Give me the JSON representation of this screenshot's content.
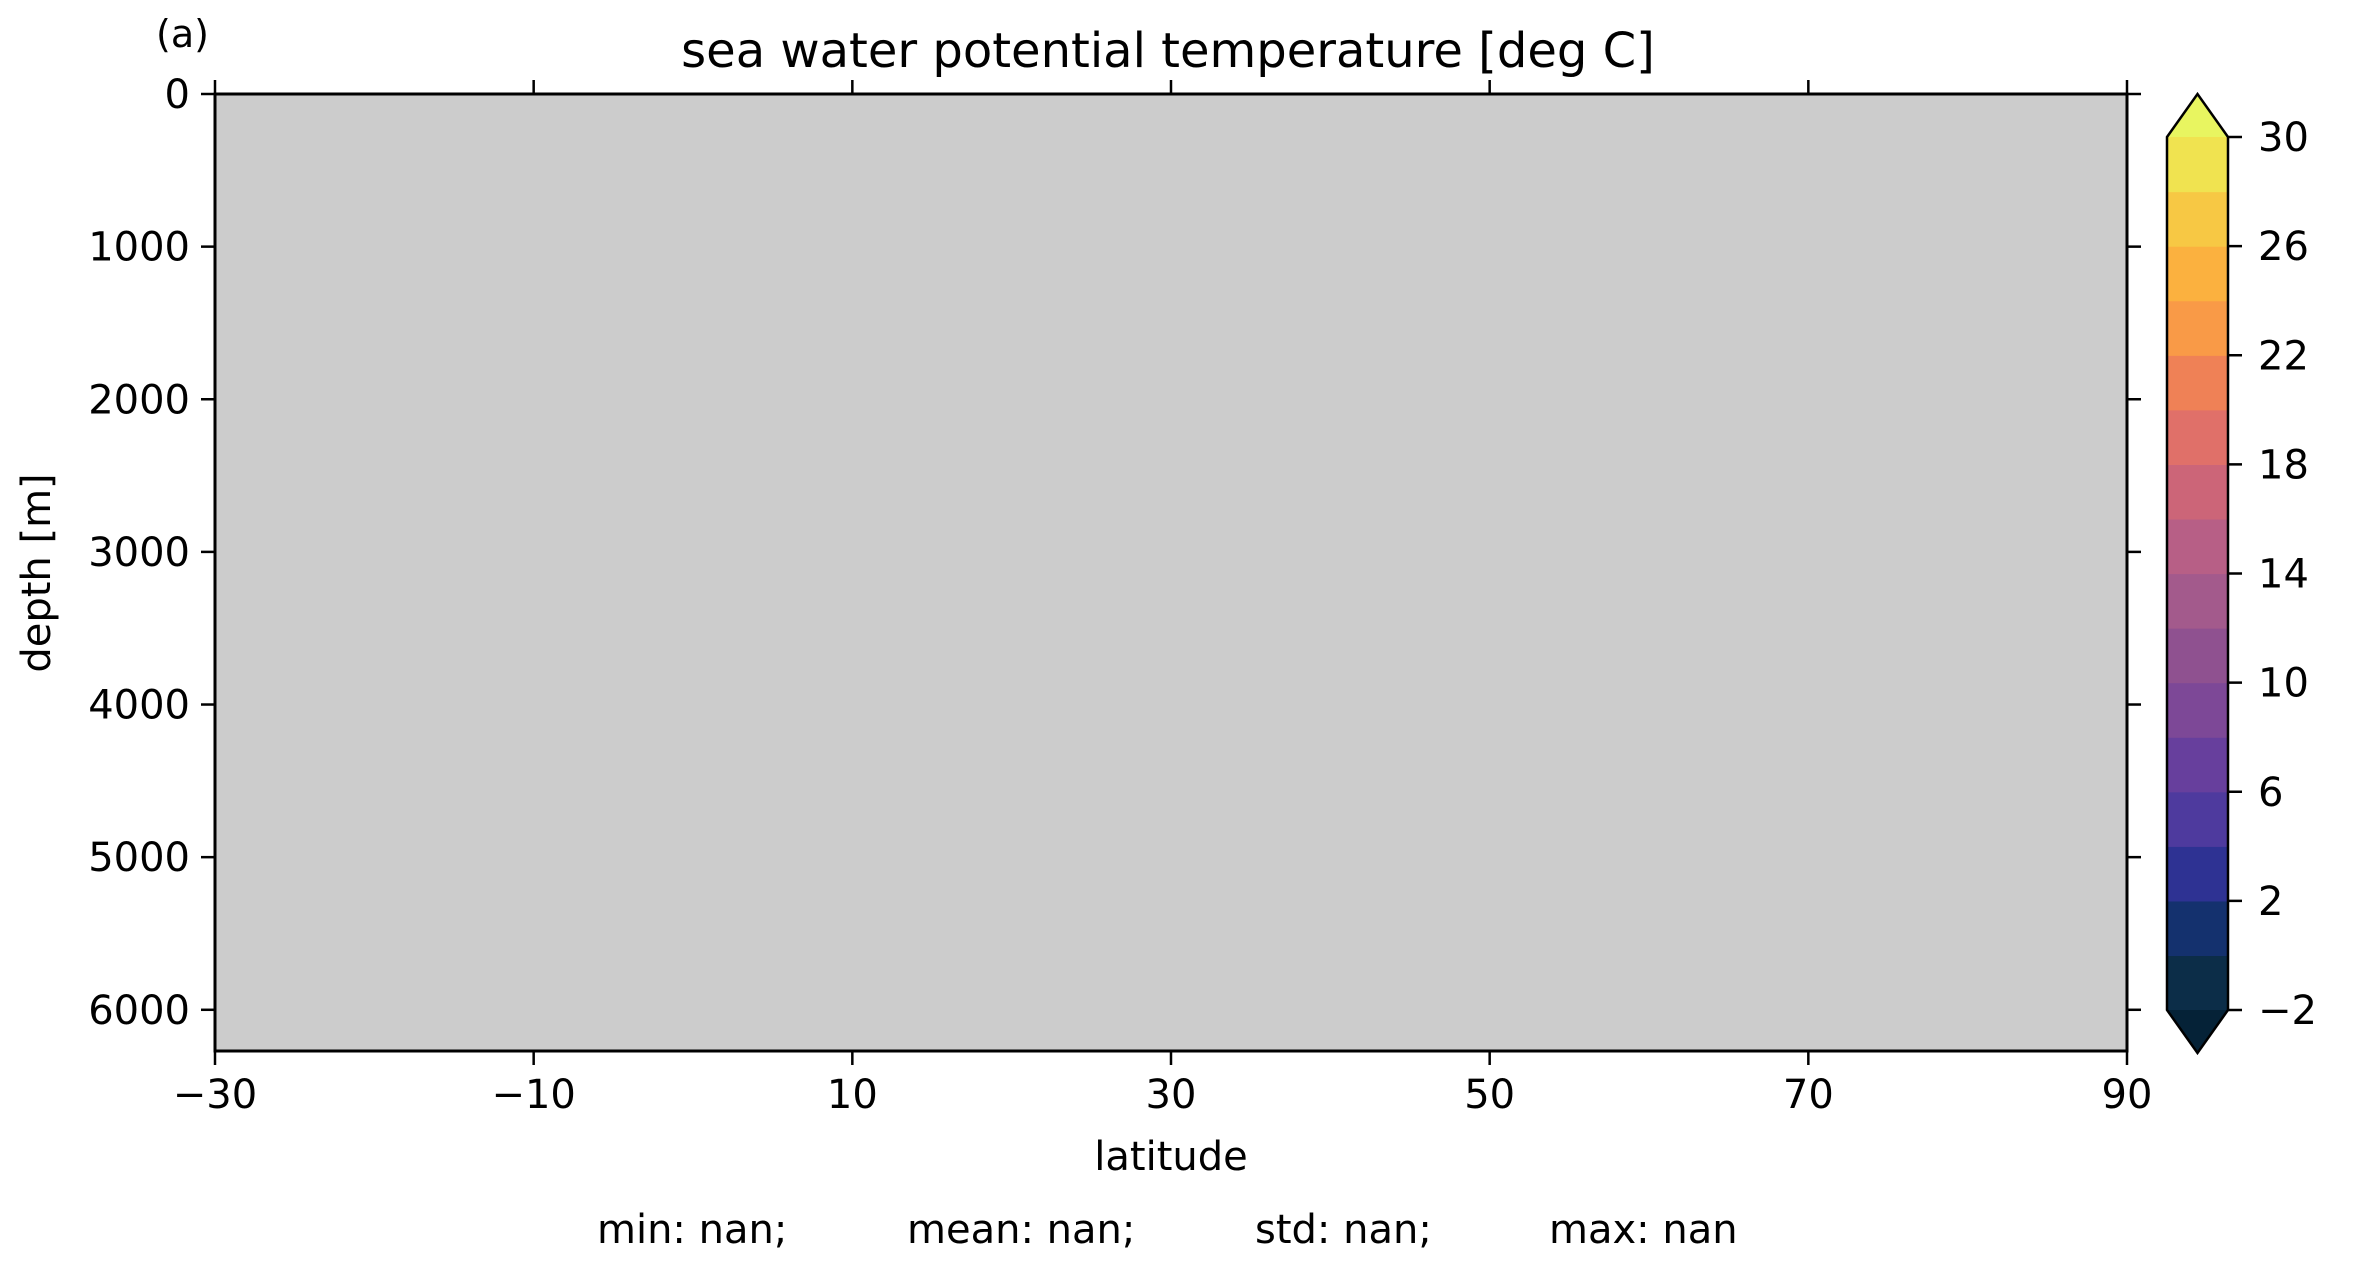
{
  "chart_data": {
    "type": "heatmap",
    "panel_label": "(a)",
    "title": "sea water potential temperature [deg C]",
    "xlabel": "latitude",
    "ylabel": "depth [m]",
    "xlim": [
      -30,
      90
    ],
    "ylim": [
      6270,
      0
    ],
    "y_inverted": true,
    "x_ticks": [
      -30,
      -10,
      10,
      30,
      50,
      70,
      90
    ],
    "x_tick_labels": [
      "−30",
      "−10",
      "10",
      "30",
      "50",
      "70",
      "90"
    ],
    "y_ticks": [
      0,
      1000,
      2000,
      3000,
      4000,
      5000,
      6000
    ],
    "y_tick_labels": [
      "0",
      "1000",
      "2000",
      "3000",
      "4000",
      "5000",
      "6000"
    ],
    "field_values": "all NaN (no data)",
    "missing_color": "#cccccc",
    "colorbar": {
      "levels": [
        -2,
        0,
        2,
        4,
        6,
        8,
        10,
        12,
        14,
        16,
        18,
        20,
        22,
        24,
        26,
        28,
        30
      ],
      "extend": "both",
      "tick_values": [
        -2,
        2,
        6,
        10,
        14,
        18,
        22,
        26,
        30
      ],
      "tick_labels": [
        "−2",
        "2",
        "6",
        "10",
        "14",
        "18",
        "22",
        "26",
        "30"
      ],
      "under_color": "#052237",
      "over_color": "#e8f560",
      "colors": [
        "#0c2d48",
        "#14316e",
        "#2e3293",
        "#4e3a9e",
        "#673f9d",
        "#7d4897",
        "#8f5190",
        "#a35a8c",
        "#b75f86",
        "#cc6578",
        "#e07069",
        "#ef8156",
        "#f99a47",
        "#fbb13f",
        "#f7c844",
        "#f0e350"
      ]
    },
    "stats": {
      "min": "min: nan;",
      "mean": "mean: nan;",
      "std": "std: nan;",
      "max": "max: nan"
    }
  }
}
